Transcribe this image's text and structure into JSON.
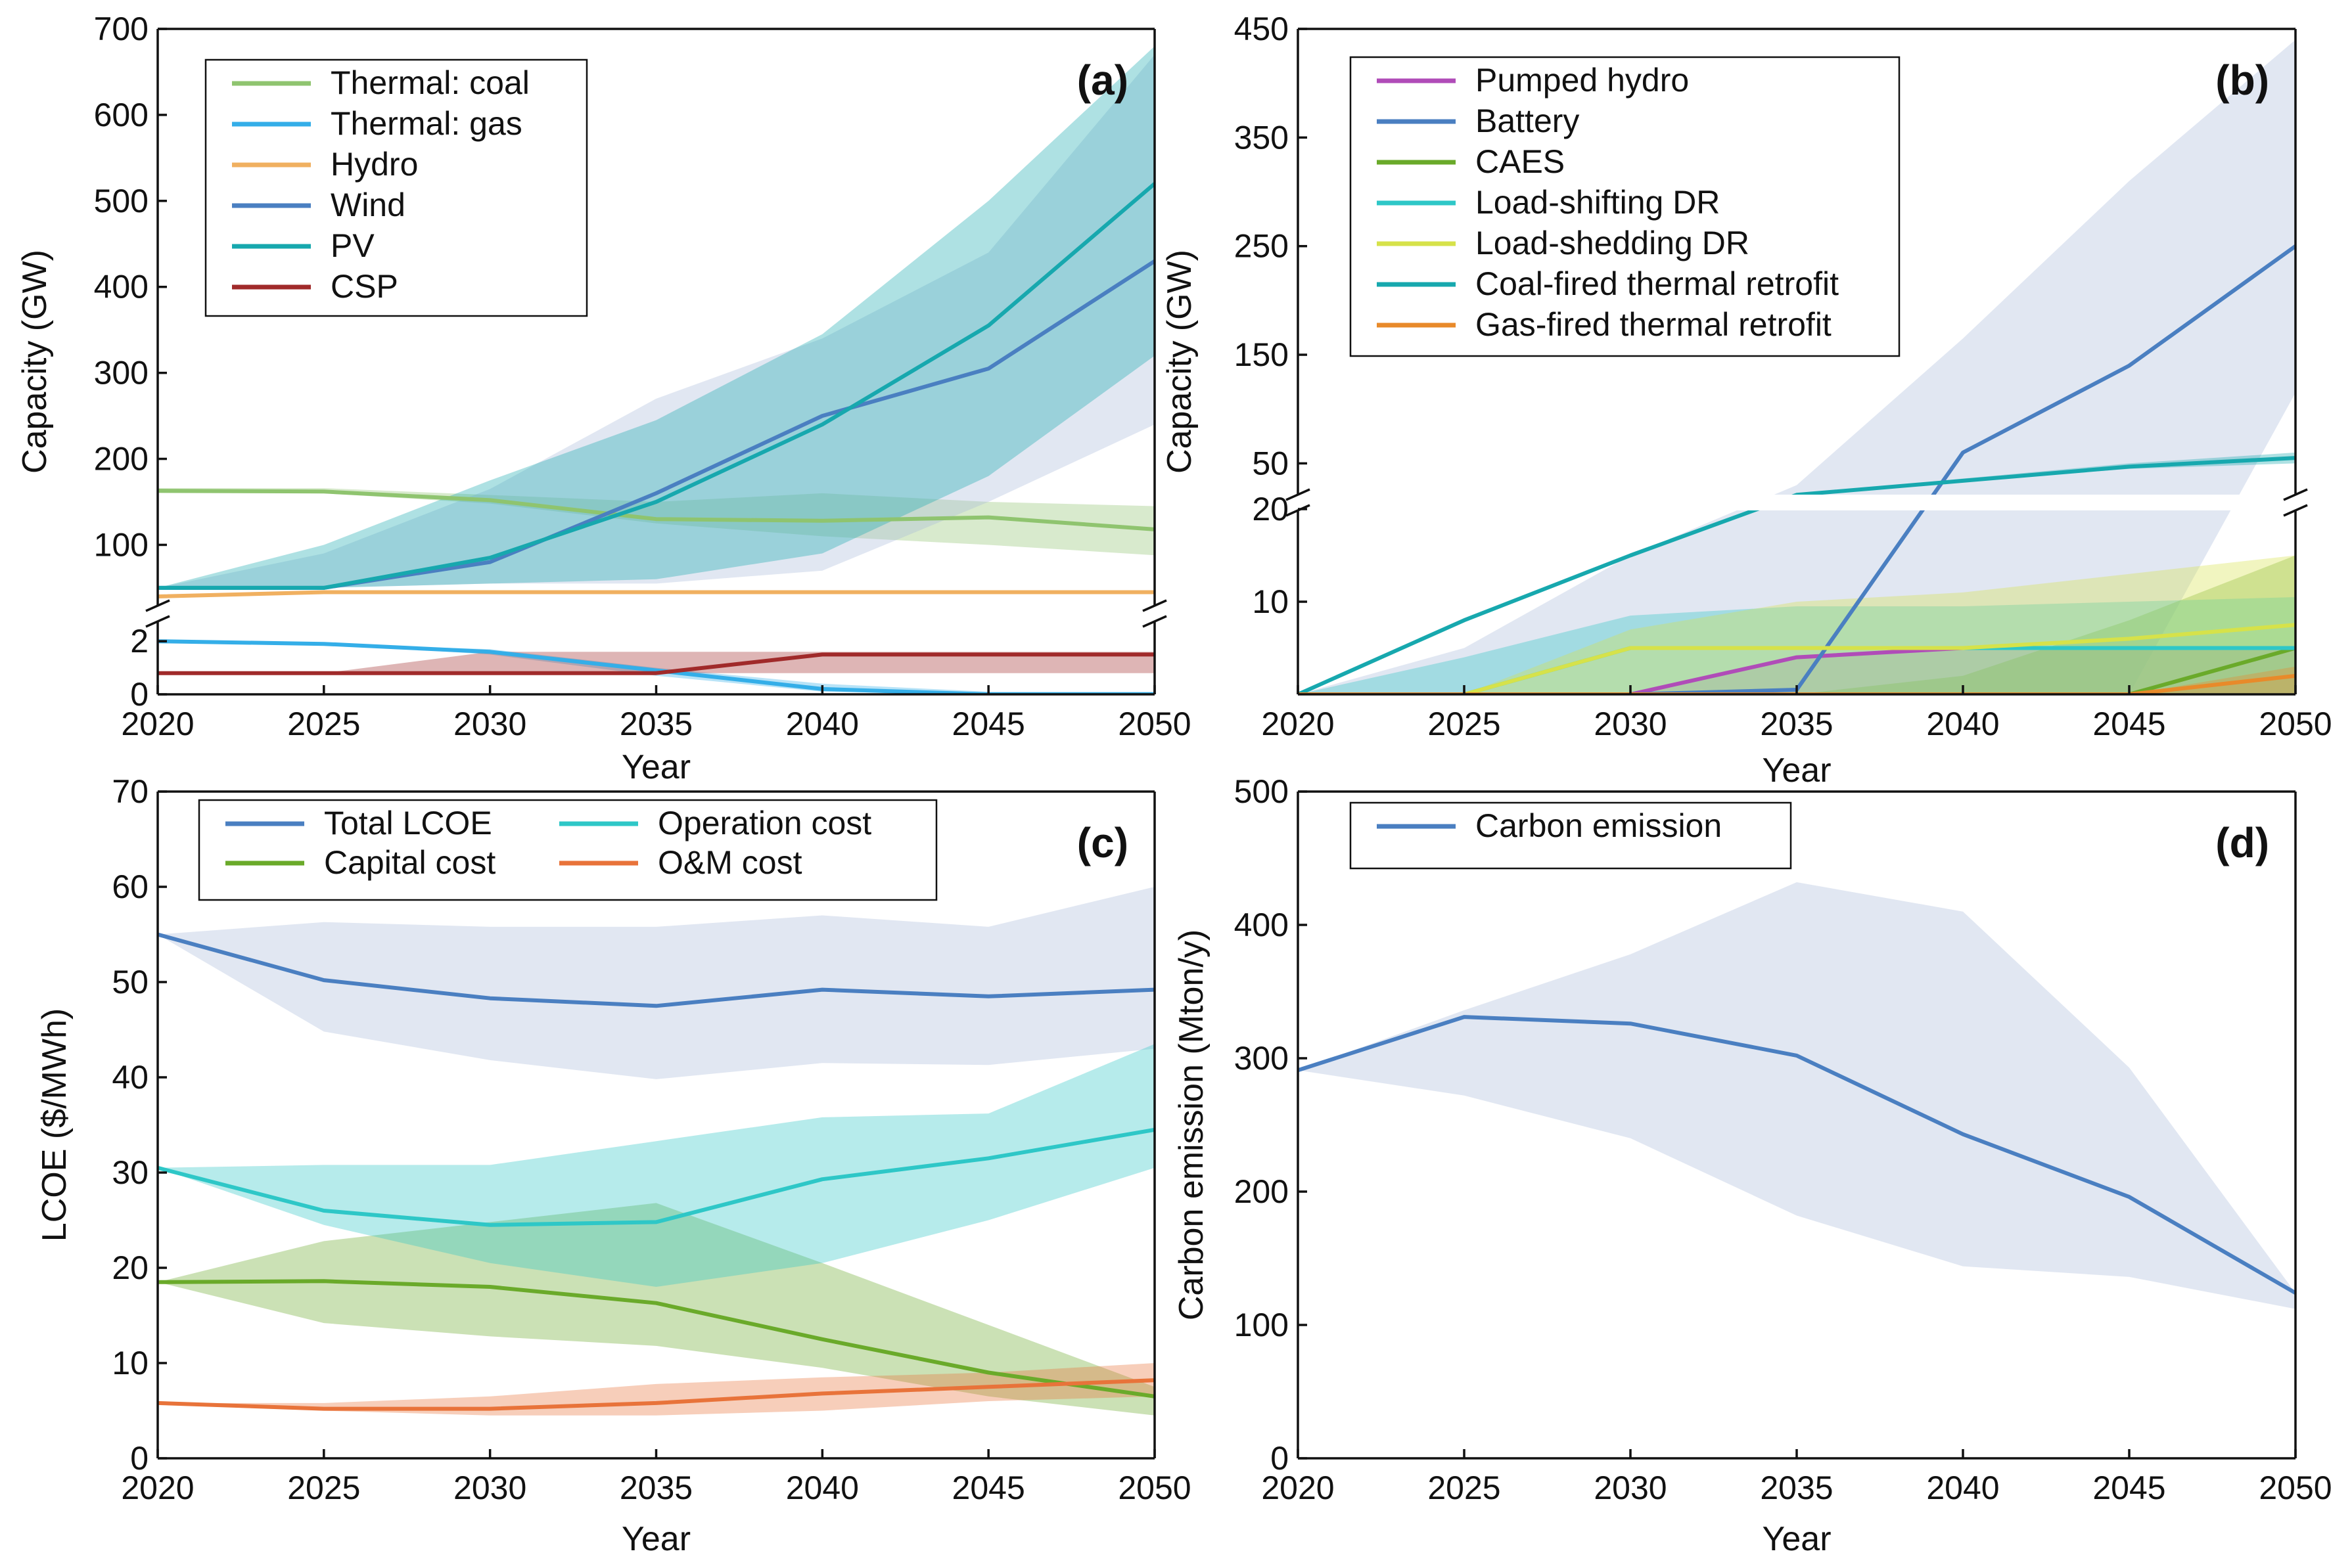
{
  "chart_data": [
    {
      "id": "a",
      "type": "line",
      "panel_label": "(a)",
      "xlabel": "Year",
      "ylabel": "Capacity (GW)",
      "x": [
        2020,
        2025,
        2030,
        2035,
        2040,
        2045,
        2050
      ],
      "xlim": [
        2020,
        2050
      ],
      "axis_break": {
        "lower_range": [
          0,
          2.4
        ],
        "upper_range": [
          40,
          700
        ]
      },
      "yticks_lower": [
        0,
        2
      ],
      "yticks_upper": [
        100,
        200,
        300,
        400,
        500,
        600,
        700
      ],
      "legend_location": "top-left",
      "series": [
        {
          "name": "Thermal: coal",
          "color": "#8fc46f",
          "values": [
            163,
            162,
            152,
            130,
            128,
            132,
            118
          ],
          "band_low": [
            160,
            160,
            148,
            125,
            110,
            100,
            88
          ],
          "band_high": [
            166,
            166,
            158,
            150,
            160,
            150,
            145
          ]
        },
        {
          "name": "Thermal: gas",
          "color": "#34aee8",
          "values": [
            2.0,
            1.9,
            1.6,
            0.9,
            0.2,
            0.0,
            0.0
          ],
          "band_low": [
            2.0,
            1.9,
            1.5,
            0.7,
            0.1,
            0.0,
            0.0
          ],
          "band_high": [
            2.0,
            1.9,
            1.7,
            1.0,
            0.4,
            0.1,
            0.1
          ]
        },
        {
          "name": "Hydro",
          "color": "#f0b060",
          "values": [
            40,
            45,
            45,
            45,
            45,
            45,
            45
          ],
          "band_low": [
            40,
            45,
            45,
            45,
            45,
            45,
            45
          ],
          "band_high": [
            40,
            45,
            45,
            45,
            45,
            45,
            45
          ]
        },
        {
          "name": "Wind",
          "color": "#4a7fc1",
          "values": [
            50,
            50,
            80,
            160,
            250,
            305,
            430
          ],
          "band_low": [
            50,
            50,
            55,
            55,
            70,
            150,
            240
          ],
          "band_high": [
            50,
            90,
            165,
            270,
            340,
            440,
            670
          ]
        },
        {
          "name": "PV",
          "color": "#17a8ae",
          "values": [
            50,
            50,
            85,
            150,
            240,
            355,
            520
          ],
          "band_low": [
            50,
            50,
            55,
            60,
            90,
            180,
            320
          ],
          "band_high": [
            50,
            100,
            175,
            245,
            345,
            500,
            680
          ]
        },
        {
          "name": "CSP",
          "color": "#a02a2a",
          "values": [
            0.8,
            0.8,
            0.8,
            0.8,
            1.5,
            1.5,
            1.5
          ],
          "band_low": [
            0.8,
            0.8,
            0.8,
            0.8,
            0.8,
            0.8,
            0.8
          ],
          "band_high": [
            0.8,
            0.8,
            1.6,
            1.6,
            1.6,
            1.6,
            1.6
          ]
        }
      ]
    },
    {
      "id": "b",
      "type": "line",
      "panel_label": "(b)",
      "xlabel": "Year",
      "ylabel": "Capacity (GW)",
      "x": [
        2020,
        2025,
        2030,
        2035,
        2040,
        2045,
        2050
      ],
      "xlim": [
        2020,
        2050
      ],
      "axis_break": {
        "lower_range": [
          0,
          20
        ],
        "upper_range": [
          20,
          450
        ]
      },
      "yticks_lower": [
        10,
        20
      ],
      "yticks_upper": [
        50,
        150,
        250,
        350,
        450
      ],
      "legend_location": "top-left",
      "series": [
        {
          "name": "Pumped hydro",
          "color": "#b04cb8",
          "values": [
            0,
            0,
            0,
            4,
            5,
            5,
            5
          ],
          "band_low": [
            0,
            0,
            0,
            0,
            0,
            0,
            0
          ],
          "band_high": [
            0,
            0,
            0,
            4,
            5,
            5,
            5
          ]
        },
        {
          "name": "Battery",
          "color": "#4a7fc1",
          "values": [
            0,
            0,
            0,
            0.5,
            60,
            140,
            250
          ],
          "band_low": [
            0,
            0,
            0,
            0,
            0,
            0,
            115
          ],
          "band_high": [
            0,
            5,
            15,
            30,
            165,
            310,
            440
          ]
        },
        {
          "name": "CAES",
          "color": "#6aaa2a",
          "values": [
            0,
            0,
            0,
            0,
            0,
            0,
            5
          ],
          "band_low": [
            0,
            0,
            0,
            0,
            0,
            0,
            0
          ],
          "band_high": [
            0,
            0,
            0,
            0,
            2,
            8,
            15
          ]
        },
        {
          "name": "Load-shifting DR",
          "color": "#2ec7c7",
          "values": [
            0,
            0,
            5,
            5,
            5,
            5,
            5
          ],
          "band_low": [
            0,
            0,
            0,
            0,
            0,
            0,
            0
          ],
          "band_high": [
            0,
            4,
            8.5,
            9.5,
            9.5,
            10,
            10.5
          ]
        },
        {
          "name": "Load-shedding DR",
          "color": "#d6e24a",
          "values": [
            0,
            0,
            5,
            5,
            5,
            6,
            7.5
          ],
          "band_low": [
            0,
            0,
            0,
            0,
            0,
            0,
            0
          ],
          "band_high": [
            0,
            0,
            7,
            10,
            11,
            13,
            15
          ]
        },
        {
          "name": "Coal-fired thermal retrofit",
          "color": "#17a8ae",
          "values": [
            0,
            8,
            15,
            21,
            34,
            47,
            55
          ],
          "band_low": [
            0,
            8,
            15,
            21,
            33,
            45,
            50
          ],
          "band_high": [
            0,
            8,
            15,
            21,
            36,
            50,
            60
          ]
        },
        {
          "name": "Gas-fired thermal retrofit",
          "color": "#e88a2a",
          "values": [
            0,
            0,
            0,
            0,
            0,
            0,
            2
          ],
          "band_low": [
            0,
            0,
            0,
            0,
            0,
            0,
            0
          ],
          "band_high": [
            0,
            0,
            0,
            0,
            0,
            0,
            3
          ]
        }
      ]
    },
    {
      "id": "c",
      "type": "line",
      "panel_label": "(c)",
      "xlabel": "Year",
      "ylabel": "LCOE ($/MWh)",
      "x": [
        2020,
        2025,
        2030,
        2035,
        2040,
        2045,
        2050
      ],
      "xlim": [
        2020,
        2050
      ],
      "ylim": [
        0,
        70
      ],
      "yticks": [
        0,
        10,
        20,
        30,
        40,
        50,
        60,
        70
      ],
      "legend_location": "top-left",
      "series": [
        {
          "name": "Total LCOE",
          "color": "#4a7fc1",
          "values": [
            55,
            50.2,
            48.3,
            47.5,
            49.2,
            48.5,
            49.2
          ],
          "band_low": [
            55,
            44.8,
            41.8,
            39.8,
            41.5,
            41.3,
            43
          ],
          "band_high": [
            55,
            56.3,
            55.8,
            55.8,
            57,
            55.8,
            60
          ]
        },
        {
          "name": "Capital cost",
          "color": "#6aaa2a",
          "values": [
            18.5,
            18.6,
            18.0,
            16.3,
            12.5,
            9.0,
            6.5
          ],
          "band_low": [
            18.5,
            14.2,
            12.8,
            11.8,
            9.5,
            6.5,
            4.5
          ],
          "band_high": [
            18.5,
            22.8,
            24.8,
            26.8,
            20.5,
            14,
            7.5
          ]
        },
        {
          "name": "Operation cost",
          "color": "#2ec7c7",
          "values": [
            30.5,
            26.0,
            24.5,
            24.8,
            29.3,
            31.5,
            34.5
          ],
          "band_low": [
            30.5,
            24.5,
            20.5,
            18,
            20.5,
            25,
            30.5
          ],
          "band_high": [
            30.5,
            30.8,
            30.8,
            33.3,
            35.8,
            36.2,
            43.5
          ]
        },
        {
          "name": "O&M cost",
          "color": "#e8733a",
          "values": [
            5.8,
            5.2,
            5.2,
            5.8,
            6.8,
            7.5,
            8.2
          ],
          "band_low": [
            5.8,
            5.0,
            4.5,
            4.5,
            5.0,
            6.0,
            6.5
          ],
          "band_high": [
            5.8,
            5.8,
            6.5,
            7.8,
            8.5,
            9.0,
            10.0
          ]
        }
      ]
    },
    {
      "id": "d",
      "type": "line",
      "panel_label": "(d)",
      "xlabel": "Year",
      "ylabel": "Carbon emission (Mton/y)",
      "x": [
        2020,
        2025,
        2030,
        2035,
        2040,
        2045,
        2050
      ],
      "xlim": [
        2020,
        2050
      ],
      "ylim": [
        0,
        500
      ],
      "yticks": [
        0,
        100,
        200,
        300,
        400,
        500
      ],
      "legend_location": "top-left",
      "series": [
        {
          "name": "Carbon emission",
          "color": "#4a7fc1",
          "values": [
            291,
            331,
            326,
            302,
            243,
            196,
            124
          ],
          "band_low": [
            291,
            272,
            240,
            182,
            144,
            136,
            112
          ],
          "band_high": [
            291,
            336,
            378,
            432,
            410,
            293,
            124
          ]
        }
      ]
    }
  ],
  "x_ticks": [
    2020,
    2025,
    2030,
    2035,
    2040,
    2045,
    2050
  ],
  "band_color": "#aab9db"
}
